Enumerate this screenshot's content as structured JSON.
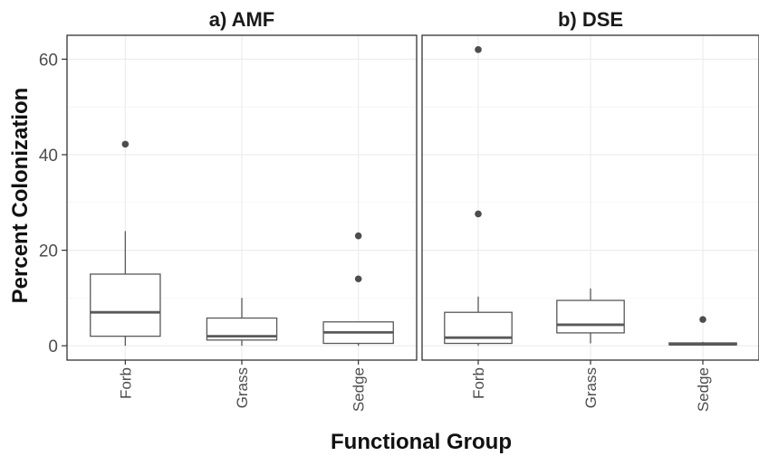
{
  "chart_data": {
    "type": "boxplot",
    "ylabel": "Percent Colonization",
    "xlabel": "Functional Group",
    "ylim": [
      -3,
      65
    ],
    "yticks": [
      0,
      20,
      40,
      60
    ],
    "grid": true,
    "panels": [
      {
        "title": "a) AMF",
        "categories": [
          "Forb",
          "Grass",
          "Sedge"
        ],
        "boxes": [
          {
            "category": "Forb",
            "whisker_low": 0,
            "q1": 2,
            "median": 7,
            "q3": 15,
            "whisker_high": 24,
            "outliers": [
              42.2
            ]
          },
          {
            "category": "Grass",
            "whisker_low": 0,
            "q1": 1.2,
            "median": 2,
            "q3": 5.8,
            "whisker_high": 10,
            "outliers": []
          },
          {
            "category": "Sedge",
            "whisker_low": 0,
            "q1": 0.5,
            "median": 2.8,
            "q3": 5,
            "whisker_high": 5,
            "outliers": [
              14,
              23
            ]
          }
        ]
      },
      {
        "title": "b) DSE",
        "categories": [
          "Forb",
          "Grass",
          "Sedge"
        ],
        "boxes": [
          {
            "category": "Forb",
            "whisker_low": 0,
            "q1": 0.5,
            "median": 1.7,
            "q3": 7,
            "whisker_high": 10.3,
            "outliers": [
              27.6,
              62
            ]
          },
          {
            "category": "Grass",
            "whisker_low": 0.5,
            "q1": 2.7,
            "median": 4.4,
            "q3": 9.5,
            "whisker_high": 12,
            "outliers": []
          },
          {
            "category": "Sedge",
            "whisker_low": 0,
            "q1": 0.2,
            "median": 0.3,
            "q3": 0.6,
            "whisker_high": 0.8,
            "outliers": [
              5.5
            ]
          }
        ]
      }
    ]
  }
}
